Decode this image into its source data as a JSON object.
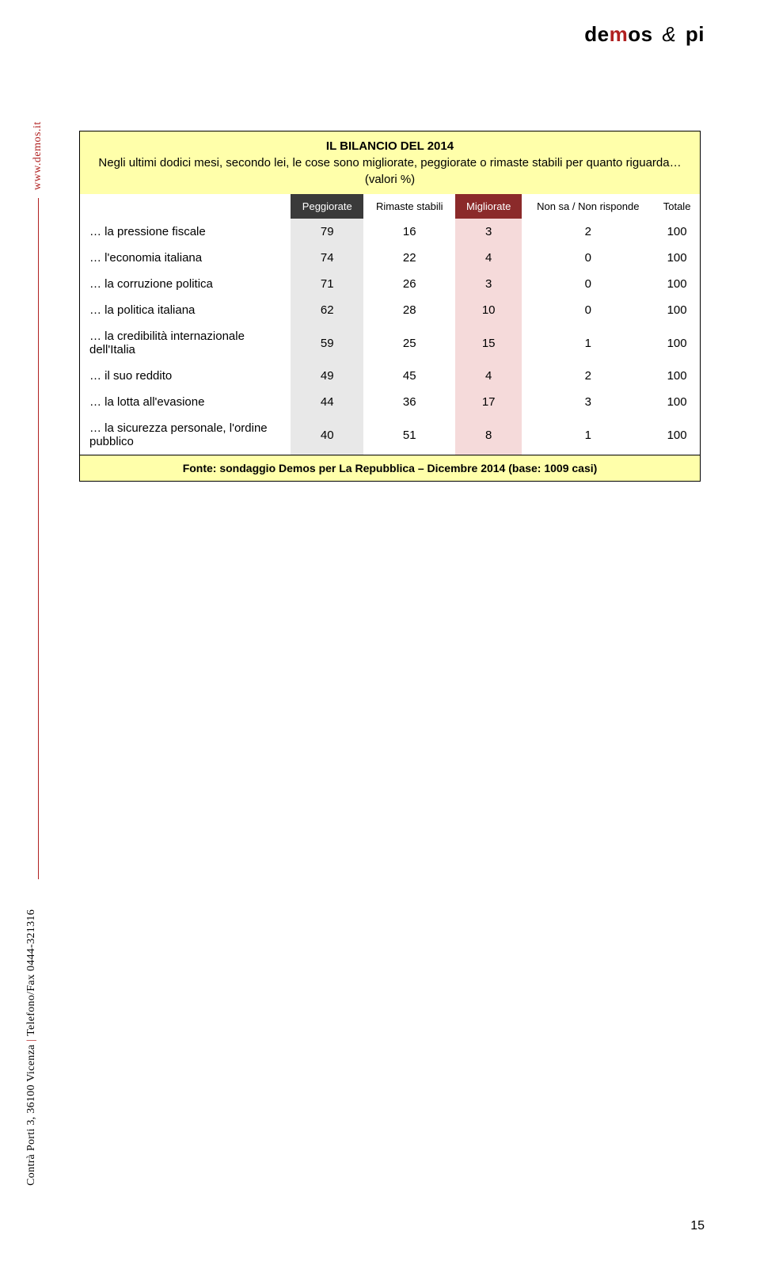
{
  "logo": {
    "part1": "de",
    "part2": "m",
    "part3": "os ",
    "amp": "&",
    "part4": " pi"
  },
  "sidebar": {
    "url": "www.demos.it",
    "address": "Contrà Porti 3, 36100 Vicenza",
    "sep": "|",
    "phone": "Telefono/Fax 0444-321316"
  },
  "table": {
    "title": "IL BILANCIO DEL 2014",
    "subtitle": "Negli ultimi dodici mesi, secondo lei, le cose sono migliorate, peggiorate o rimaste stabili per quanto riguarda… (valori %)",
    "columns": [
      {
        "key": "label",
        "label": ""
      },
      {
        "key": "peggiorate",
        "label": "Peggiorate",
        "header_bg": "#3a3a3a",
        "cell_bg": "#e8e8e8"
      },
      {
        "key": "rimaste",
        "label": "Rimaste stabili",
        "header_bg": "",
        "cell_bg": ""
      },
      {
        "key": "migliorate",
        "label": "Migliorate",
        "header_bg": "#8b2a2a",
        "cell_bg": "#f5dada"
      },
      {
        "key": "nonsa",
        "label": "Non sa / Non risponde",
        "header_bg": "",
        "cell_bg": ""
      },
      {
        "key": "totale",
        "label": "Totale",
        "header_bg": "",
        "cell_bg": ""
      }
    ],
    "rows": [
      {
        "label": "… la pressione fiscale",
        "peggiorate": "79",
        "rimaste": "16",
        "migliorate": "3",
        "nonsa": "2",
        "totale": "100"
      },
      {
        "label": "… l'economia italiana",
        "peggiorate": "74",
        "rimaste": "22",
        "migliorate": "4",
        "nonsa": "0",
        "totale": "100"
      },
      {
        "label": "… la corruzione politica",
        "peggiorate": "71",
        "rimaste": "26",
        "migliorate": "3",
        "nonsa": "0",
        "totale": "100"
      },
      {
        "label": "… la politica italiana",
        "peggiorate": "62",
        "rimaste": "28",
        "migliorate": "10",
        "nonsa": "0",
        "totale": "100"
      },
      {
        "label": "… la credibilità internazionale dell'Italia",
        "peggiorate": "59",
        "rimaste": "25",
        "migliorate": "15",
        "nonsa": "1",
        "totale": "100"
      },
      {
        "label": "… il suo reddito",
        "peggiorate": "49",
        "rimaste": "45",
        "migliorate": "4",
        "nonsa": "2",
        "totale": "100"
      },
      {
        "label": "… la lotta all'evasione",
        "peggiorate": "44",
        "rimaste": "36",
        "migliorate": "17",
        "nonsa": "3",
        "totale": "100"
      },
      {
        "label": "… la sicurezza personale, l'ordine pubblico",
        "peggiorate": "40",
        "rimaste": "51",
        "migliorate": "8",
        "nonsa": "1",
        "totale": "100"
      }
    ],
    "footer": "Fonte: sondaggio Demos per La Repubblica – Dicembre 2014 (base: 1009 casi)",
    "colors": {
      "title_bg": "#ffffaa",
      "header_dark_bg": "#3a3a3a",
      "header_red_bg": "#8b2a2a",
      "cell_grey_bg": "#e8e8e8",
      "cell_pink_bg": "#f5dada",
      "border": "#000000",
      "text": "#000000"
    }
  },
  "page_number": "15"
}
